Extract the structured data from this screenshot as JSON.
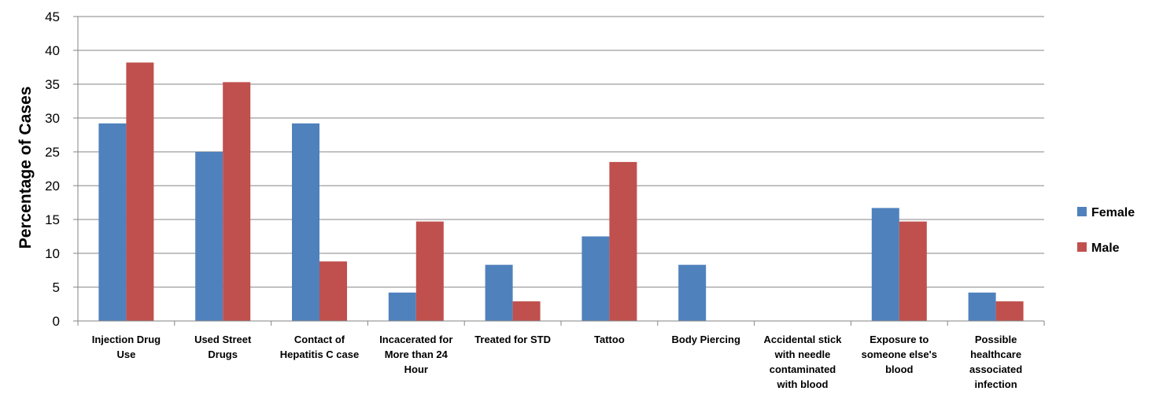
{
  "chart_data": {
    "type": "bar",
    "title": "",
    "xlabel": "",
    "ylabel": "Percentage of Cases",
    "ylim": [
      0,
      45
    ],
    "yticks": [
      0,
      5,
      10,
      15,
      20,
      25,
      30,
      35,
      40,
      45
    ],
    "grid": true,
    "legend_position": "right",
    "categories": [
      [
        "Injection Drug",
        "Use"
      ],
      [
        "Used Street",
        "Drugs"
      ],
      [
        "Contact of",
        "Hepatitis C case"
      ],
      [
        "Incacerated for",
        "More than 24",
        "Hour"
      ],
      [
        "Treated for STD"
      ],
      [
        "Tattoo"
      ],
      [
        "Body Piercing"
      ],
      [
        "Accidental stick",
        "with needle",
        "contaminated",
        "with blood"
      ],
      [
        "Exposure to",
        "someone else's",
        "blood"
      ],
      [
        "Possible",
        "healthcare",
        "associated",
        "infection"
      ]
    ],
    "series": [
      {
        "name": "Female",
        "color": "#4F81BD",
        "values": [
          29.2,
          25.0,
          29.2,
          4.2,
          8.3,
          12.5,
          8.3,
          0,
          16.7,
          4.2
        ]
      },
      {
        "name": "Male",
        "color": "#C0504D",
        "values": [
          38.2,
          35.3,
          8.8,
          14.7,
          2.9,
          23.5,
          0,
          0,
          14.7,
          2.9
        ]
      }
    ]
  }
}
